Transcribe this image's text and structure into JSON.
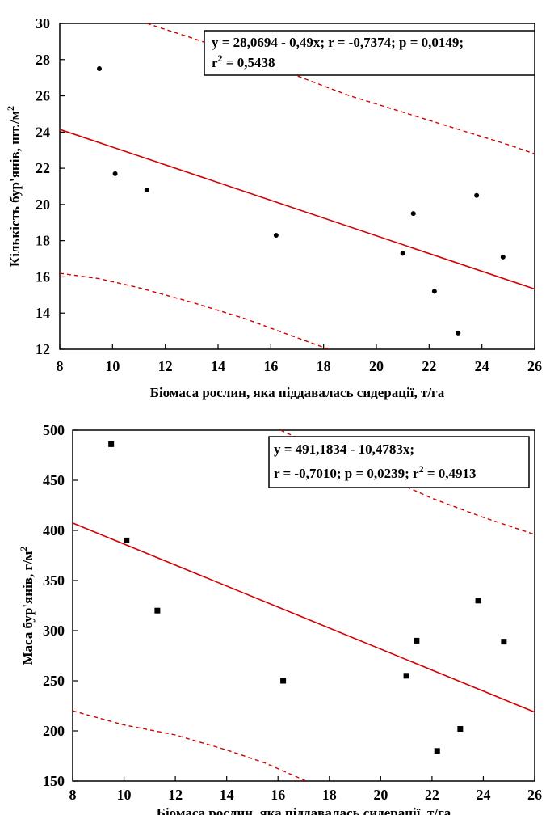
{
  "chart_data": [
    {
      "type": "scatter",
      "xlabel": "Біомаса рослин, яка піддавалась сидерації, т/га",
      "ylabel": "Кількість бур'янів, шт./м",
      "ylabel_sup": "2",
      "xlim": [
        8,
        26
      ],
      "ylim": [
        12,
        30
      ],
      "xticks": [
        "8",
        "10",
        "12",
        "14",
        "16",
        "18",
        "20",
        "22",
        "24",
        "26"
      ],
      "yticks": [
        "12",
        "14",
        "16",
        "18",
        "20",
        "22",
        "24",
        "26",
        "28",
        "30"
      ],
      "grid": false,
      "marker": "circle",
      "points": [
        {
          "x": 9.5,
          "y": 27.5
        },
        {
          "x": 10.1,
          "y": 21.7
        },
        {
          "x": 11.3,
          "y": 20.8
        },
        {
          "x": 16.2,
          "y": 18.3
        },
        {
          "x": 21.0,
          "y": 17.3
        },
        {
          "x": 21.4,
          "y": 19.5
        },
        {
          "x": 22.2,
          "y": 15.2
        },
        {
          "x": 23.1,
          "y": 12.9
        },
        {
          "x": 23.8,
          "y": 20.5
        },
        {
          "x": 24.8,
          "y": 17.1
        }
      ],
      "fit": {
        "intercept": 28.0694,
        "slope": -0.49
      },
      "conf_lower": [
        [
          8,
          16.2
        ],
        [
          9.5,
          15.9
        ],
        [
          11,
          15.4
        ],
        [
          13,
          14.6
        ],
        [
          15,
          13.7
        ],
        [
          16.5,
          12.9
        ],
        [
          18.2,
          12.0
        ]
      ],
      "conf_upper": [
        [
          11.3,
          30.0
        ],
        [
          13,
          29.2
        ],
        [
          15,
          28.2
        ],
        [
          17,
          27.1
        ],
        [
          19,
          26.0
        ],
        [
          21,
          25.1
        ],
        [
          23,
          24.2
        ],
        [
          25,
          23.3
        ],
        [
          26,
          22.8
        ]
      ],
      "annotation_lines": [
        {
          "text": "y = 28,0694 - 0,49x;  r = -0,7374; p = 0,0149;",
          "sup": ""
        },
        {
          "text": "r",
          "sup": "2",
          "after": " = 0,5438"
        }
      ],
      "annotation_pos": "top-right",
      "colors": {
        "fit": "#d40000",
        "points": "#000000"
      }
    },
    {
      "type": "scatter",
      "xlabel": "Біомаса рослин, яка піддавалась сидерації, т/га",
      "ylabel": "Маса бур'янів, г/м",
      "ylabel_sup": "2",
      "xlim": [
        8,
        26
      ],
      "ylim": [
        150,
        500
      ],
      "xticks": [
        "8",
        "10",
        "12",
        "14",
        "16",
        "18",
        "20",
        "22",
        "24",
        "26"
      ],
      "yticks": [
        "150",
        "200",
        "250",
        "300",
        "350",
        "400",
        "450",
        "500"
      ],
      "grid": false,
      "marker": "square",
      "points": [
        {
          "x": 9.5,
          "y": 486
        },
        {
          "x": 10.1,
          "y": 390
        },
        {
          "x": 11.3,
          "y": 320
        },
        {
          "x": 16.2,
          "y": 250
        },
        {
          "x": 21.0,
          "y": 255
        },
        {
          "x": 21.4,
          "y": 290
        },
        {
          "x": 22.2,
          "y": 180
        },
        {
          "x": 23.1,
          "y": 202
        },
        {
          "x": 23.8,
          "y": 330
        },
        {
          "x": 24.8,
          "y": 289
        }
      ],
      "fit": {
        "intercept": 491.1834,
        "slope": -10.4783
      },
      "conf_lower": [
        [
          8,
          220
        ],
        [
          10,
          206
        ],
        [
          12,
          196
        ],
        [
          14,
          181
        ],
        [
          15.5,
          168
        ],
        [
          17.1,
          150
        ]
      ],
      "conf_upper": [
        [
          16.1,
          500
        ],
        [
          18,
          478
        ],
        [
          20,
          455
        ],
        [
          22,
          432
        ],
        [
          24,
          413
        ],
        [
          26,
          396
        ]
      ],
      "annotation_lines": [
        {
          "text": "y = 491,1834 - 10,4783x;",
          "sup": ""
        },
        {
          "text": " r = -0,7010; p = 0,0239; r",
          "sup": "2",
          "after": " = 0,4913"
        }
      ],
      "annotation_pos": "top-right",
      "colors": {
        "fit": "#d40000",
        "points": "#000000"
      }
    }
  ]
}
